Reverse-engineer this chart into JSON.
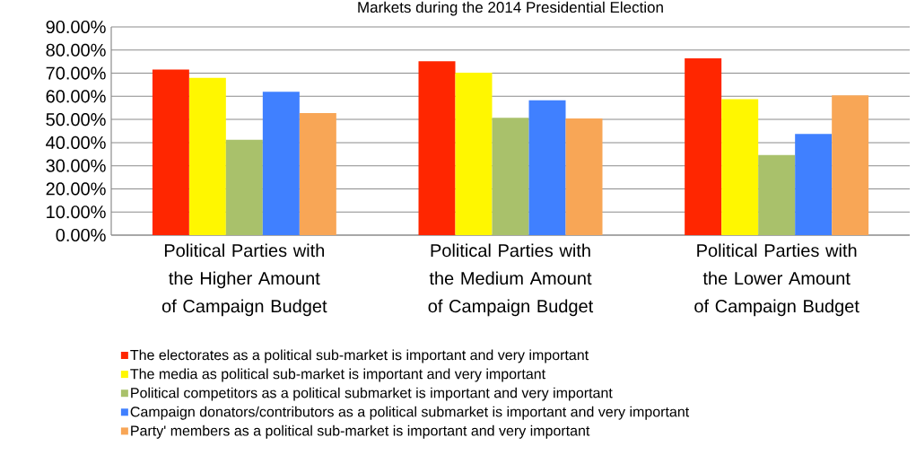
{
  "chart_data": {
    "type": "bar",
    "title": "Markets during the 2014 Presidential Election",
    "categories": [
      "Political Parties with the Higher Amount of Campaign Budget",
      "Political Parties with the Medium Amount of Campaign Budget",
      "Political Parties with the Lower Amount of Campaign Budget"
    ],
    "series": [
      {
        "name": "The electorates as a political sub-market is important and very important",
        "color": "#ff2600",
        "values": [
          71.6,
          75.2,
          76.4
        ]
      },
      {
        "name": "The media as political sub-market is important and very important",
        "color": "#fff700",
        "values": [
          68.0,
          70.2,
          58.8
        ]
      },
      {
        "name": "Political competitors as a political submarket is important and very important",
        "color": "#a9c16b",
        "values": [
          41.2,
          50.7,
          34.6
        ]
      },
      {
        "name": "Campaign donators/contributors as a political submarket is important and very important",
        "color": "#4080ff",
        "values": [
          62.0,
          58.3,
          43.7
        ]
      },
      {
        "name": "Party' members as a political sub-market is important and very important",
        "color": "#f8a656",
        "values": [
          52.8,
          50.4,
          60.4
        ]
      }
    ],
    "ylim": [
      0,
      90
    ],
    "yticks": [
      {
        "value": 0,
        "label": "0.00%"
      },
      {
        "value": 10,
        "label": "10.00%"
      },
      {
        "value": 20,
        "label": "20.00%"
      },
      {
        "value": 30,
        "label": "30.00%"
      },
      {
        "value": 40,
        "label": "40.00%"
      },
      {
        "value": 50,
        "label": "50.00%"
      },
      {
        "value": 60,
        "label": "60.00%"
      },
      {
        "value": 70,
        "label": "70.00%"
      },
      {
        "value": 80,
        "label": "80.00%"
      },
      {
        "value": 90,
        "label": "90.00%"
      }
    ],
    "grid": "y",
    "legend": "bottom"
  }
}
